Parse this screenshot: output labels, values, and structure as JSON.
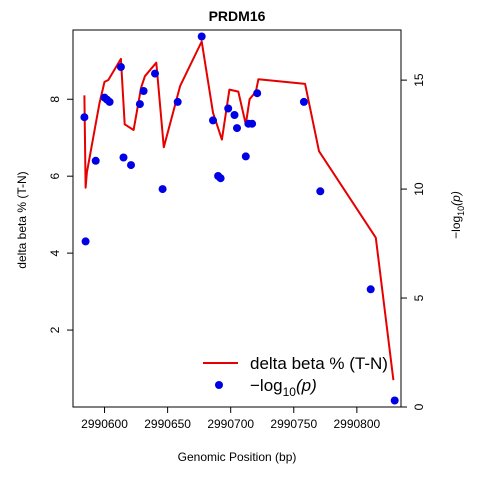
{
  "chart_data": {
    "type": "line",
    "title": "PRDM16",
    "xlabel": "Genomic Position (bp)",
    "ylabel": "delta beta % (T-N)",
    "y2label_prefix": "−log",
    "y2label_sub": "10",
    "y2label_suffix": "(p)",
    "xlim": [
      2990575,
      2990835
    ],
    "ylim": [
      0.0,
      9.8
    ],
    "y2lim": [
      0.0,
      17.3
    ],
    "x_ticks": [
      2990600,
      2990650,
      2990700,
      2990750,
      2990800
    ],
    "x_tick_labels": [
      "2990600",
      "2990650",
      "2990700",
      "2990750",
      "2990800"
    ],
    "y_ticks": [
      2,
      4,
      6,
      8
    ],
    "y_tick_labels": [
      "2",
      "4",
      "6",
      "8"
    ],
    "y2_ticks": [
      0,
      5,
      10,
      15
    ],
    "y2_tick_labels": [
      "0",
      "5",
      "10",
      "15"
    ],
    "series": [
      {
        "name": "delta beta % (T-N)",
        "color": "#e60000",
        "style": "line",
        "axis": "left",
        "x": [
          2990584,
          2990585,
          2990586,
          2990596,
          2990600,
          2990603,
          2990613,
          2990616,
          2990623,
          2990629,
          2990632,
          2990641,
          2990647,
          2990660,
          2990677,
          2990686,
          2990693,
          2990699,
          2990706,
          2990712,
          2990715,
          2990720,
          2990722,
          2990759,
          2990770,
          2990815,
          2990829
        ],
        "y": [
          8.1,
          5.7,
          6.1,
          7.9,
          8.45,
          8.5,
          9.05,
          7.35,
          7.2,
          8.3,
          8.6,
          8.95,
          6.75,
          8.35,
          9.5,
          7.65,
          6.95,
          8.25,
          8.2,
          7.35,
          8.0,
          8.2,
          8.52,
          8.4,
          6.65,
          4.4,
          0.7
        ]
      },
      {
        "name": "−log10(p)",
        "color": "#0000e6",
        "style": "points",
        "axis": "right",
        "x": [
          2990584,
          2990585,
          2990593,
          2990600,
          2990602,
          2990604,
          2990613,
          2990615,
          2990621,
          2990628,
          2990631,
          2990640,
          2990646,
          2990658,
          2990677,
          2990686,
          2990690,
          2990692,
          2990698,
          2990703,
          2990705,
          2990712,
          2990714,
          2990717,
          2990721,
          2990758,
          2990771,
          2990811,
          2990830
        ],
        "y": [
          13.3,
          7.6,
          11.3,
          14.2,
          14.1,
          14.0,
          15.6,
          11.45,
          11.1,
          13.9,
          14.5,
          15.3,
          10.0,
          14.0,
          17.0,
          13.15,
          10.6,
          10.5,
          13.7,
          13.4,
          12.8,
          11.5,
          13.0,
          13.0,
          14.4,
          14.0,
          9.9,
          5.4,
          0.3
        ]
      }
    ],
    "legend": {
      "position": "bottom-right",
      "entries": [
        {
          "label": "delta beta % (T-N)",
          "kind": "line"
        },
        {
          "label_prefix": "−log",
          "label_sub": "10",
          "label_suffix": "(p)",
          "kind": "point"
        }
      ]
    },
    "grid": false
  }
}
